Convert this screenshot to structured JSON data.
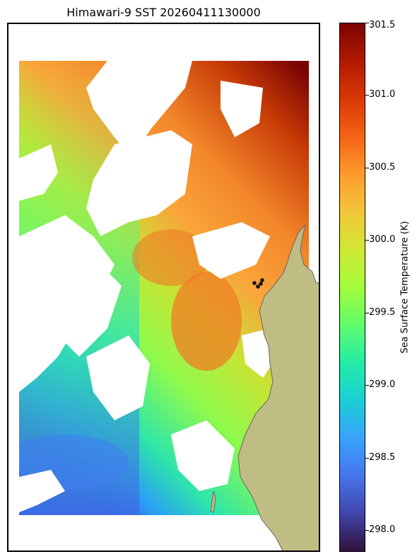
{
  "title": "Himawari-9 SST 20260411130000",
  "colorbar": {
    "label": "Sea Surface Temperature (K)",
    "min": 297.85,
    "max": 301.5,
    "ticks": [
      "298.0",
      "298.5",
      "299.0",
      "299.5",
      "300.0",
      "300.5",
      "301.0",
      "301.5"
    ],
    "colormap": "turbo"
  },
  "colors": {
    "land": "#bfbd83",
    "coastline": "#666666",
    "missing": "#ffffff",
    "markers": "#111111"
  },
  "markers": {
    "count": 4
  }
}
